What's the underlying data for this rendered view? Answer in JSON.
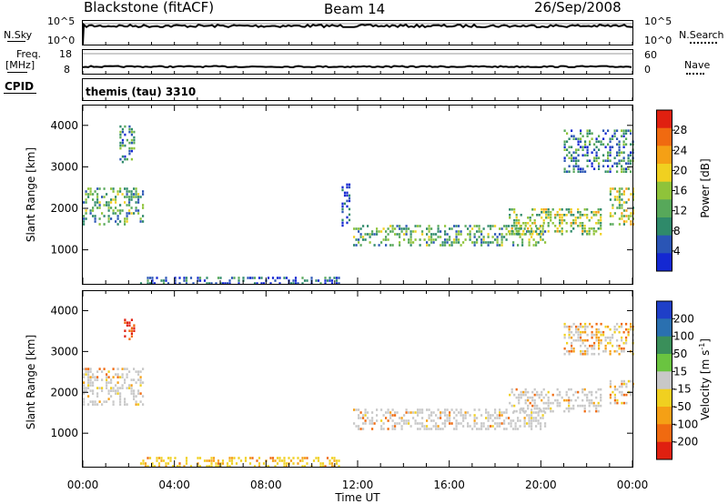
{
  "header": {
    "station": "Blackstone (fitACF)",
    "beam": "Beam 14",
    "date": "26/Sep/2008"
  },
  "top_panels": {
    "nsky_label": "N.Sky",
    "nsky_ticks": [
      "10^5",
      "10^0"
    ],
    "nsearch_label": "N.Search",
    "nsearch_ticks": [
      "10^5",
      "10^0"
    ],
    "freq_label": "Freq.",
    "freq_unit": "[MHz]",
    "freq_ticks": [
      "18",
      "8"
    ],
    "nave_label": "Nave",
    "nave_ticks": [
      "60",
      "0"
    ],
    "cpid_label": "CPID",
    "cpid_value": "themis (tau) 3310"
  },
  "colors": {
    "power": [
      "#1428d2",
      "#2a55b5",
      "#2f8a6a",
      "#57a85a",
      "#8fc33a",
      "#f0d020",
      "#f5a015",
      "#f06a10",
      "#e02010"
    ],
    "velocity": [
      "#1f3fc8",
      "#2a70b0",
      "#3a8f5a",
      "#6ac440",
      "#c8c8c8",
      "#f0d020",
      "#f5a015",
      "#f06a10",
      "#e02010"
    ],
    "velocity_gray": "#c8c8c8"
  },
  "chart_data": [
    {
      "type": "heatmap",
      "name": "power",
      "ylabel": "Slant Range [km]",
      "xlabel": "Time UT",
      "x_ticks": [
        "00:00",
        "04:00",
        "08:00",
        "12:00",
        "16:00",
        "20:00",
        "00:00"
      ],
      "x_range_hours": [
        0,
        24
      ],
      "y_ticks": [
        1000,
        2000,
        3000,
        4000
      ],
      "y_range_km": [
        180,
        4500
      ],
      "colorbar": {
        "label": "Power [dB]",
        "ticks": [
          4,
          8,
          12,
          16,
          20,
          24,
          28
        ],
        "range": [
          0,
          32
        ]
      },
      "regions": [
        {
          "t": [
            0.0,
            2.6
          ],
          "r": [
            1600,
            2500
          ],
          "level": 3
        },
        {
          "t": [
            1.6,
            2.2
          ],
          "r": [
            3100,
            4000
          ],
          "level": 2
        },
        {
          "t": [
            2.5,
            11.2
          ],
          "r": [
            200,
            350
          ],
          "level": 1
        },
        {
          "t": [
            11.3,
            11.6
          ],
          "r": [
            1500,
            2600
          ],
          "level": 1
        },
        {
          "t": [
            11.8,
            20.2
          ],
          "r": [
            1100,
            1600
          ],
          "level": 3
        },
        {
          "t": [
            18.6,
            22.6
          ],
          "r": [
            1400,
            2000
          ],
          "level": 4
        },
        {
          "t": [
            21.0,
            24.0
          ],
          "r": [
            2900,
            3900
          ],
          "level": 2
        },
        {
          "t": [
            23.0,
            24.0
          ],
          "r": [
            1600,
            2500
          ],
          "level": 4
        }
      ]
    },
    {
      "type": "heatmap",
      "name": "velocity",
      "ylabel": "Slant Range [km]",
      "xlabel": "Time UT",
      "x_ticks": [
        "00:00",
        "04:00",
        "08:00",
        "12:00",
        "16:00",
        "20:00",
        "00:00"
      ],
      "x_range_hours": [
        0,
        24
      ],
      "y_ticks": [
        1000,
        2000,
        3000,
        4000
      ],
      "y_range_km": [
        180,
        4500
      ],
      "colorbar": {
        "label": "Velocity [m s^-1]",
        "ticks": [
          "200",
          "100",
          "50",
          "15",
          "-15",
          "-50",
          "-100",
          "-200"
        ],
        "range": [
          -250,
          250
        ]
      },
      "regions": [
        {
          "t": [
            0.0,
            2.6
          ],
          "r": [
            1700,
            2600
          ],
          "level": 4
        },
        {
          "t": [
            1.8,
            2.2
          ],
          "r": [
            3300,
            3800
          ],
          "level": 8
        },
        {
          "t": [
            2.5,
            11.2
          ],
          "r": [
            200,
            420
          ],
          "level": 6
        },
        {
          "t": [
            11.8,
            20.2
          ],
          "r": [
            1100,
            1600
          ],
          "level": 4
        },
        {
          "t": [
            18.6,
            22.6
          ],
          "r": [
            1500,
            2100
          ],
          "level": 4
        },
        {
          "t": [
            21.0,
            24.0
          ],
          "r": [
            2900,
            3700
          ],
          "level": 5
        },
        {
          "t": [
            23.0,
            24.0
          ],
          "r": [
            1700,
            2300
          ],
          "level": 5
        }
      ]
    }
  ]
}
